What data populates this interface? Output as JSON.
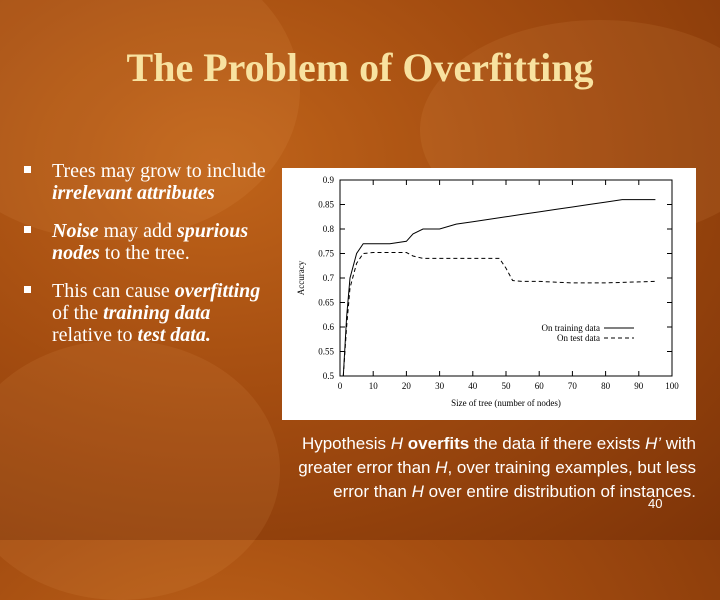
{
  "slide": {
    "title": "The Problem of Overfitting",
    "bullets": [
      {
        "parts": [
          {
            "text": "Trees may grow to include ",
            "italic": false
          },
          {
            "text": "irrelevant attributes",
            "italic": true
          }
        ]
      },
      {
        "parts": [
          {
            "text": "Noise",
            "italic": true
          },
          {
            "text": " may add ",
            "italic": false
          },
          {
            "text": "spurious nodes",
            "italic": true
          },
          {
            "text": " to the tree.",
            "italic": false
          }
        ]
      },
      {
        "parts": [
          {
            "text": "This can cause ",
            "italic": false
          },
          {
            "text": "overfitting",
            "italic": true
          },
          {
            "text": " of the ",
            "italic": false
          },
          {
            "text": "training data",
            "italic": true
          },
          {
            "text": " relative to ",
            "italic": false
          },
          {
            "text": "test data.",
            "italic": true
          }
        ]
      }
    ],
    "caption": [
      {
        "text": "Hypothesis ",
        "style": "normal"
      },
      {
        "text": "H",
        "style": "italic"
      },
      {
        "text": " ",
        "style": "normal"
      },
      {
        "text": "overfits",
        "style": "bold"
      },
      {
        "text": " the data if there exists ",
        "style": "normal"
      },
      {
        "text": "H’",
        "style": "italic"
      },
      {
        "text": " with greater error than ",
        "style": "normal"
      },
      {
        "text": "H",
        "style": "italic"
      },
      {
        "text": ", over training examples, but less error than ",
        "style": "normal"
      },
      {
        "text": "H",
        "style": "italic"
      },
      {
        "text": " over entire distribution of instances.",
        "style": "normal"
      }
    ],
    "slide_number": "40"
  },
  "chart_data": {
    "type": "line",
    "xlabel": "Size of tree (number of nodes)",
    "ylabel": "Accuracy",
    "xlim": [
      0,
      100
    ],
    "ylim": [
      0.5,
      0.9
    ],
    "xticks": [
      "0",
      "10",
      "20",
      "30",
      "40",
      "50",
      "60",
      "70",
      "80",
      "90",
      "100"
    ],
    "yticks": [
      "0.5",
      "0.55",
      "0.6",
      "0.65",
      "0.7",
      "0.75",
      "0.8",
      "0.85",
      "0.9"
    ],
    "legend_position": "bottom-right",
    "series": [
      {
        "name": "On training data",
        "dash": "solid",
        "points": [
          [
            1,
            0.5
          ],
          [
            2,
            0.62
          ],
          [
            3,
            0.7
          ],
          [
            5,
            0.75
          ],
          [
            7,
            0.77
          ],
          [
            10,
            0.77
          ],
          [
            15,
            0.77
          ],
          [
            20,
            0.775
          ],
          [
            22,
            0.79
          ],
          [
            25,
            0.8
          ],
          [
            30,
            0.8
          ],
          [
            35,
            0.81
          ],
          [
            40,
            0.815
          ],
          [
            45,
            0.82
          ],
          [
            50,
            0.825
          ],
          [
            55,
            0.83
          ],
          [
            60,
            0.835
          ],
          [
            65,
            0.84
          ],
          [
            70,
            0.845
          ],
          [
            75,
            0.85
          ],
          [
            80,
            0.855
          ],
          [
            85,
            0.86
          ],
          [
            90,
            0.86
          ],
          [
            95,
            0.86
          ]
        ]
      },
      {
        "name": "On test data",
        "dash": "dashed",
        "points": [
          [
            1,
            0.5
          ],
          [
            2,
            0.6
          ],
          [
            3,
            0.68
          ],
          [
            5,
            0.73
          ],
          [
            7,
            0.75
          ],
          [
            10,
            0.752
          ],
          [
            15,
            0.752
          ],
          [
            20,
            0.752
          ],
          [
            22,
            0.745
          ],
          [
            25,
            0.74
          ],
          [
            30,
            0.74
          ],
          [
            40,
            0.74
          ],
          [
            48,
            0.74
          ],
          [
            50,
            0.72
          ],
          [
            52,
            0.695
          ],
          [
            55,
            0.693
          ],
          [
            60,
            0.693
          ],
          [
            70,
            0.69
          ],
          [
            80,
            0.69
          ],
          [
            90,
            0.692
          ],
          [
            95,
            0.693
          ]
        ]
      }
    ]
  }
}
